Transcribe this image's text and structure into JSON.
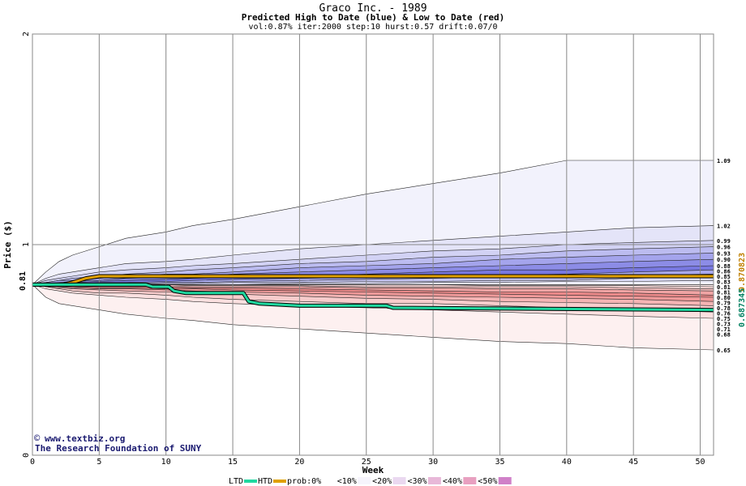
{
  "chart_data": {
    "type": "area",
    "title": "Graco Inc. - 1989",
    "subtitle": "Predicted High to Date (blue) &  Low to Date (red)",
    "params": "vol:0.87% iter:2000 step:10 hurst:0.57 drift:0.07/0",
    "xlabel": "Week",
    "ylabel": "Price ($)",
    "xlim": [
      0,
      51
    ],
    "ylim": [
      0,
      2
    ],
    "x_ticks": [
      0,
      5,
      10,
      15,
      20,
      25,
      30,
      35,
      40,
      45,
      50
    ],
    "y_ticks": [
      0,
      1,
      2
    ],
    "start_price_label": "0.81",
    "start_price": 0.81,
    "weeks": [
      0,
      1,
      2,
      3,
      5,
      7,
      10,
      12,
      15,
      20,
      25,
      30,
      35,
      40,
      45,
      51
    ],
    "high_bands": [
      {
        "label": "1.09",
        "color": "#f2f2fc",
        "values": [
          0.81,
          0.87,
          0.92,
          0.95,
          0.99,
          1.03,
          1.06,
          1.09,
          1.12,
          1.18,
          1.24,
          1.29,
          1.34,
          1.4,
          1.4,
          1.4
        ]
      },
      {
        "label": "1.02",
        "color": "#e4e4f8",
        "values": [
          0.81,
          0.84,
          0.86,
          0.87,
          0.89,
          0.91,
          0.92,
          0.93,
          0.95,
          0.98,
          1.0,
          1.02,
          1.04,
          1.06,
          1.08,
          1.09
        ]
      },
      {
        "label": "0.99",
        "color": "#d2d2f4",
        "values": [
          0.81,
          0.83,
          0.84,
          0.85,
          0.87,
          0.88,
          0.89,
          0.9,
          0.91,
          0.93,
          0.95,
          0.97,
          0.98,
          1.0,
          1.01,
          1.02
        ]
      },
      {
        "label": "0.96",
        "color": "#bcbcf0",
        "values": [
          0.81,
          0.82,
          0.83,
          0.84,
          0.85,
          0.86,
          0.87,
          0.88,
          0.89,
          0.91,
          0.92,
          0.94,
          0.95,
          0.97,
          0.98,
          0.99
        ]
      },
      {
        "label": "0.93",
        "color": "#a4a4ec",
        "values": [
          0.81,
          0.82,
          0.83,
          0.83,
          0.84,
          0.85,
          0.86,
          0.86,
          0.87,
          0.89,
          0.9,
          0.91,
          0.93,
          0.94,
          0.95,
          0.96
        ]
      },
      {
        "label": "0.90",
        "color": "#8c8ce6",
        "values": [
          0.81,
          0.815,
          0.82,
          0.825,
          0.83,
          0.84,
          0.845,
          0.85,
          0.86,
          0.87,
          0.88,
          0.89,
          0.9,
          0.91,
          0.92,
          0.93
        ]
      },
      {
        "label": "0.88",
        "color": "#7878e0",
        "values": [
          0.81,
          0.81,
          0.815,
          0.82,
          0.825,
          0.83,
          0.835,
          0.84,
          0.845,
          0.85,
          0.86,
          0.87,
          0.88,
          0.88,
          0.89,
          0.9
        ]
      },
      {
        "label": "0.86",
        "color": "#a8a8ec",
        "values": [
          0.81,
          0.81,
          0.81,
          0.815,
          0.82,
          0.82,
          0.825,
          0.83,
          0.835,
          0.84,
          0.845,
          0.85,
          0.855,
          0.86,
          0.87,
          0.88
        ]
      },
      {
        "label": "0.85",
        "color": "#c4c4f2",
        "values": [
          0.81,
          0.81,
          0.81,
          0.81,
          0.815,
          0.815,
          0.82,
          0.82,
          0.825,
          0.83,
          0.835,
          0.84,
          0.845,
          0.85,
          0.855,
          0.86
        ]
      },
      {
        "label": "0.83",
        "color": "#dcdcf8",
        "values": [
          0.81,
          0.81,
          0.81,
          0.81,
          0.81,
          0.81,
          0.815,
          0.815,
          0.82,
          0.82,
          0.825,
          0.825,
          0.83,
          0.83,
          0.84,
          0.85
        ]
      },
      {
        "label": "0.81",
        "color": "#eeeefc",
        "values": [
          0.81,
          0.81,
          0.81,
          0.81,
          0.81,
          0.81,
          0.81,
          0.81,
          0.81,
          0.815,
          0.815,
          0.82,
          0.82,
          0.825,
          0.825,
          0.83
        ]
      }
    ],
    "low_bands": [
      {
        "label": "0.65",
        "color": "#fdf0f0",
        "values": [
          0.81,
          0.75,
          0.72,
          0.71,
          0.69,
          0.67,
          0.65,
          0.64,
          0.62,
          0.6,
          0.58,
          0.56,
          0.54,
          0.53,
          0.51,
          0.5
        ]
      },
      {
        "label": "0.68",
        "color": "#fbe0e0",
        "values": [
          0.81,
          0.79,
          0.78,
          0.77,
          0.76,
          0.75,
          0.74,
          0.73,
          0.72,
          0.71,
          0.7,
          0.69,
          0.68,
          0.67,
          0.66,
          0.65
        ]
      },
      {
        "label": "0.71",
        "color": "#f8cccc",
        "values": [
          0.81,
          0.8,
          0.79,
          0.78,
          0.77,
          0.77,
          0.76,
          0.75,
          0.74,
          0.73,
          0.72,
          0.72,
          0.71,
          0.7,
          0.69,
          0.68
        ]
      },
      {
        "label": "0.73",
        "color": "#f4b4b4",
        "values": [
          0.81,
          0.8,
          0.795,
          0.79,
          0.785,
          0.78,
          0.775,
          0.77,
          0.765,
          0.755,
          0.745,
          0.74,
          0.73,
          0.725,
          0.72,
          0.71
        ]
      },
      {
        "label": "0.75",
        "color": "#f09a9a",
        "values": [
          0.81,
          0.805,
          0.8,
          0.795,
          0.79,
          0.79,
          0.785,
          0.78,
          0.775,
          0.77,
          0.76,
          0.755,
          0.75,
          0.745,
          0.74,
          0.73
        ]
      },
      {
        "label": "0.76",
        "color": "#ec8a8a",
        "values": [
          0.81,
          0.805,
          0.8,
          0.8,
          0.795,
          0.795,
          0.79,
          0.79,
          0.785,
          0.78,
          0.775,
          0.77,
          0.765,
          0.76,
          0.755,
          0.75
        ]
      },
      {
        "label": "0.78",
        "color": "#f0a4a4",
        "values": [
          0.81,
          0.81,
          0.805,
          0.805,
          0.8,
          0.8,
          0.8,
          0.795,
          0.795,
          0.79,
          0.785,
          0.78,
          0.775,
          0.775,
          0.77,
          0.76
        ]
      },
      {
        "label": "0.79",
        "color": "#f4c0c0",
        "values": [
          0.81,
          0.81,
          0.81,
          0.805,
          0.805,
          0.805,
          0.8,
          0.8,
          0.8,
          0.8,
          0.795,
          0.795,
          0.79,
          0.79,
          0.785,
          0.78
        ]
      },
      {
        "label": "0.80",
        "color": "#f8d8d8",
        "values": [
          0.81,
          0.81,
          0.81,
          0.81,
          0.81,
          0.81,
          0.81,
          0.805,
          0.805,
          0.805,
          0.8,
          0.8,
          0.8,
          0.8,
          0.795,
          0.79
        ]
      },
      {
        "label": "0.81",
        "color": "#fcecec",
        "values": [
          0.81,
          0.81,
          0.81,
          0.81,
          0.81,
          0.81,
          0.81,
          0.81,
          0.81,
          0.81,
          0.81,
          0.81,
          0.805,
          0.805,
          0.805,
          0.8
        ]
      }
    ],
    "htd": {
      "name": "HTD",
      "color": "#e0a000",
      "weeks": [
        0,
        2.3,
        3,
        3.5,
        4,
        5,
        6,
        8,
        12,
        20,
        51
      ],
      "values": [
        0.81,
        0.81,
        0.82,
        0.83,
        0.84,
        0.85,
        0.85,
        0.85,
        0.85,
        0.85,
        0.85
      ]
    },
    "ltd": {
      "name": "LTD",
      "color": "#20d8a0",
      "weeks": [
        0,
        5,
        8.5,
        9,
        10.2,
        10.6,
        11.5,
        15.8,
        16.2,
        17,
        20,
        26.5,
        27,
        51
      ],
      "values": [
        0.81,
        0.81,
        0.81,
        0.8,
        0.8,
        0.78,
        0.77,
        0.77,
        0.73,
        0.72,
        0.71,
        0.71,
        0.7,
        0.69
      ]
    },
    "right_values": [
      {
        "text": "0.870823",
        "color": "#c08000"
      },
      {
        "text": "0.687345",
        "color": "#008060"
      }
    ],
    "legend": {
      "ltd": "LTD",
      "htd": "HTD",
      "items": [
        {
          "label": "prob:0%",
          "color": "#ffffff"
        },
        {
          "label": "<10%",
          "color": "#f6f4fc"
        },
        {
          "label": "<20%",
          "color": "#ead8f0"
        },
        {
          "label": "<30%",
          "color": "#e8b8d8"
        },
        {
          "label": "<40%",
          "color": "#e8a0c0"
        },
        {
          "label": "<50%",
          "color": "#d080c8"
        }
      ]
    },
    "credits": {
      "site": "www.textbiz.org",
      "org": "The Research Foundation of SUNY",
      "copyright_symbol": "©"
    }
  }
}
